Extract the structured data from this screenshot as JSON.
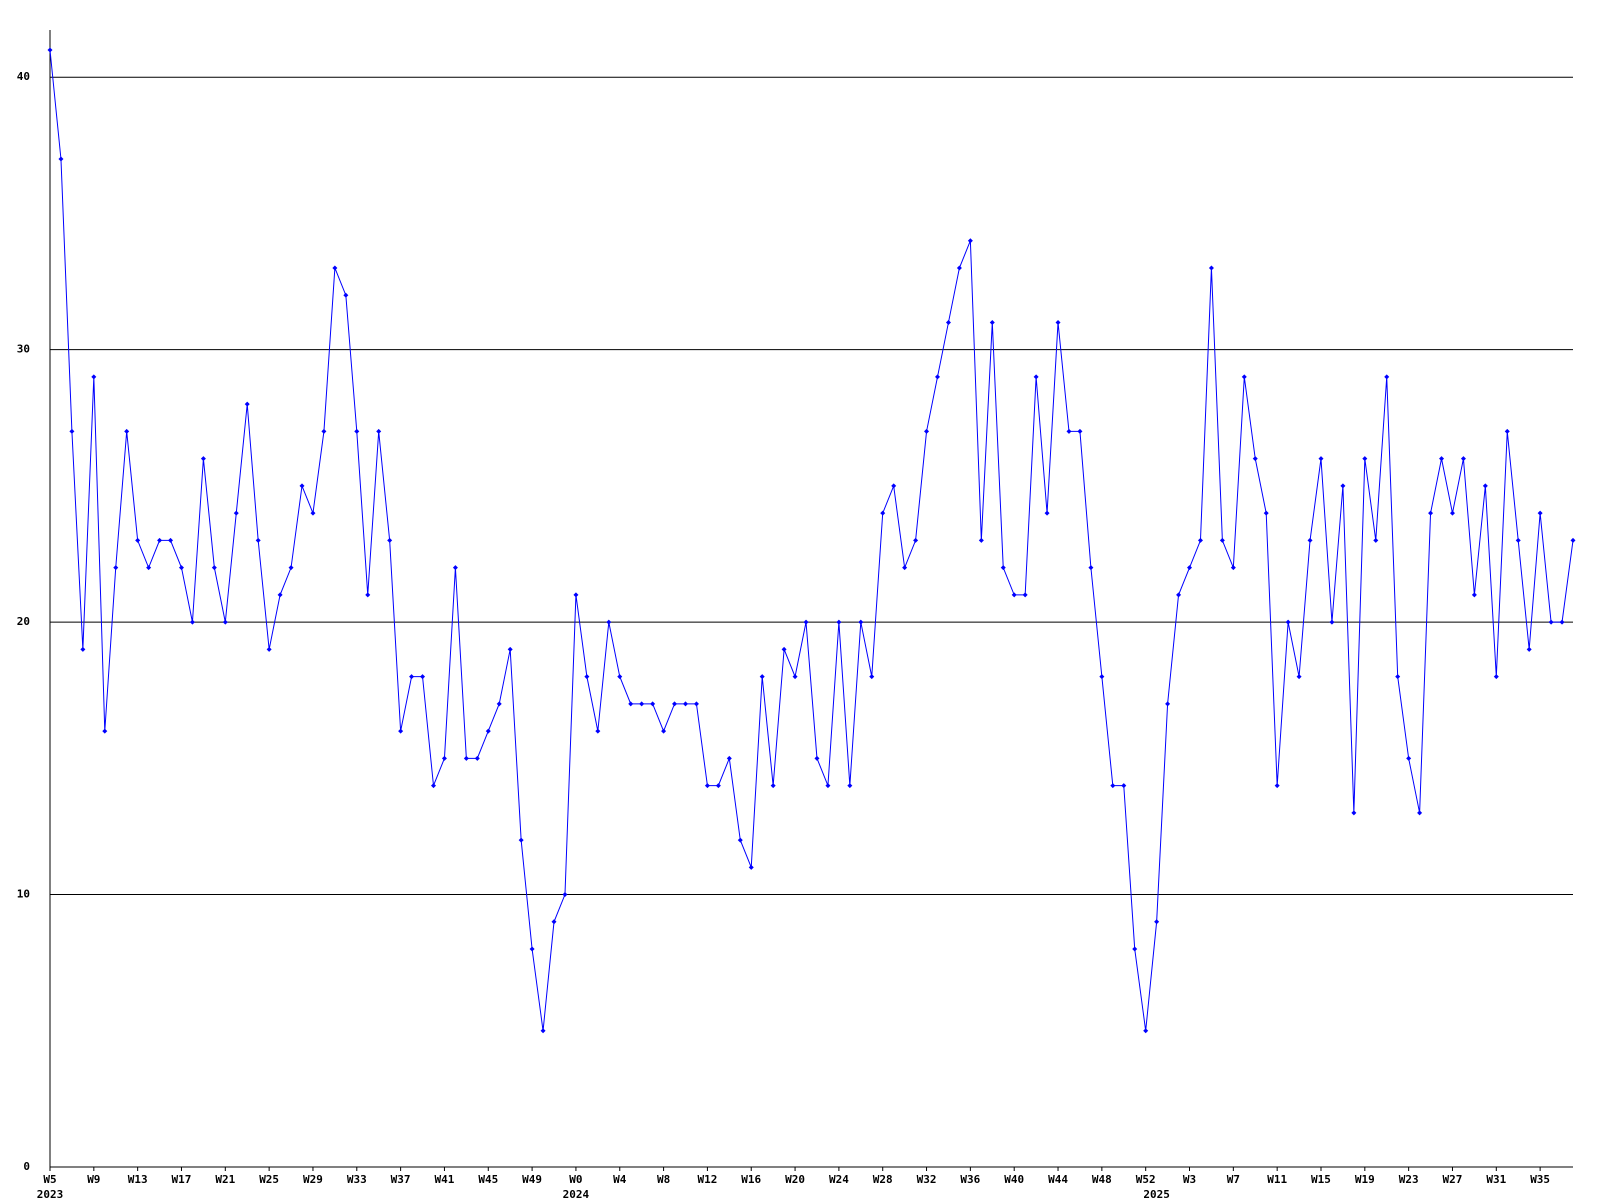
{
  "chart_data": {
    "type": "line",
    "categories": [
      "W5",
      null,
      null,
      null,
      "W9",
      null,
      null,
      null,
      "W13",
      null,
      null,
      null,
      "W17",
      null,
      null,
      null,
      "W21",
      null,
      null,
      null,
      "W25",
      null,
      null,
      null,
      "W29",
      null,
      null,
      null,
      "W33",
      null,
      null,
      null,
      "W37",
      null,
      null,
      null,
      "W41",
      null,
      null,
      null,
      "W45",
      null,
      null,
      null,
      "W49",
      null,
      null,
      null,
      "W0",
      null,
      null,
      null,
      "W4",
      null,
      null,
      null,
      "W8",
      null,
      null,
      null,
      "W12",
      null,
      null,
      null,
      "W16",
      null,
      null,
      null,
      "W20",
      null,
      null,
      null,
      "W24",
      null,
      null,
      null,
      "W28",
      null,
      null,
      null,
      "W32",
      null,
      null,
      null,
      "W36",
      null,
      null,
      null,
      "W40",
      null,
      null,
      null,
      "W44",
      null,
      null,
      null,
      "W48",
      null,
      null,
      null,
      "W52",
      null,
      null,
      null,
      "W3",
      null,
      null,
      null,
      "W7",
      null,
      null,
      null,
      "W11",
      null,
      null,
      null,
      "W15",
      null,
      null,
      null,
      "W19",
      null,
      null,
      null,
      "W23",
      null,
      null,
      null,
      "W27",
      null,
      null,
      null,
      "W31",
      null,
      null,
      null,
      "W35",
      null,
      null,
      null
    ],
    "years": [
      "2023",
      null,
      null,
      null,
      null,
      null,
      null,
      null,
      null,
      null,
      null,
      null,
      null,
      null,
      null,
      null,
      null,
      null,
      null,
      null,
      null,
      null,
      null,
      null,
      null,
      null,
      null,
      null,
      null,
      null,
      null,
      null,
      null,
      null,
      null,
      null,
      null,
      null,
      null,
      null,
      null,
      null,
      null,
      null,
      null,
      null,
      null,
      null,
      "2024",
      null,
      null,
      null,
      null,
      null,
      null,
      null,
      null,
      null,
      null,
      null,
      null,
      null,
      null,
      null,
      null,
      null,
      null,
      null,
      null,
      null,
      null,
      null,
      null,
      null,
      null,
      null,
      null,
      null,
      null,
      null,
      null,
      null,
      null,
      null,
      null,
      null,
      null,
      null,
      null,
      null,
      null,
      null,
      null,
      null,
      null,
      null,
      null,
      null,
      null,
      null,
      null,
      "2025",
      null,
      null,
      null,
      null,
      null,
      null,
      null,
      null,
      null,
      null,
      null,
      null,
      null,
      null,
      null,
      null,
      null,
      null,
      null,
      null,
      null,
      null,
      null,
      null,
      null,
      null,
      null,
      null,
      null,
      null,
      null,
      null,
      null,
      null,
      null,
      null,
      null
    ],
    "values": [
      41,
      37,
      27,
      19,
      29,
      16,
      22,
      27,
      23,
      22,
      23,
      23,
      22,
      20,
      26,
      22,
      20,
      24,
      28,
      23,
      19,
      21,
      22,
      25,
      24,
      27,
      33,
      32,
      27,
      21,
      27,
      23,
      16,
      18,
      18,
      14,
      15,
      22,
      15,
      15,
      16,
      17,
      19,
      12,
      8,
      5,
      9,
      10,
      21,
      18,
      16,
      20,
      18,
      17,
      17,
      17,
      16,
      17,
      17,
      17,
      14,
      14,
      15,
      12,
      11,
      18,
      14,
      19,
      18,
      20,
      15,
      14,
      20,
      14,
      20,
      18,
      24,
      25,
      22,
      23,
      27,
      29,
      31,
      33,
      34,
      23,
      31,
      22,
      21,
      21,
      29,
      24,
      31,
      27,
      27,
      22,
      18,
      14,
      14,
      8,
      5,
      9,
      17,
      21,
      22,
      23,
      33,
      23,
      22,
      29,
      26,
      24,
      14,
      20,
      18,
      23,
      26,
      20,
      25,
      13,
      26,
      23,
      29,
      18,
      15,
      13,
      24,
      26,
      24,
      26,
      21,
      25,
      18,
      27,
      23,
      19,
      24,
      20,
      20,
      23
    ],
    "color": "#0000ff",
    "ylim": [
      0,
      41
    ],
    "yticks": [
      0,
      10,
      20,
      30,
      40
    ],
    "grid": true
  }
}
